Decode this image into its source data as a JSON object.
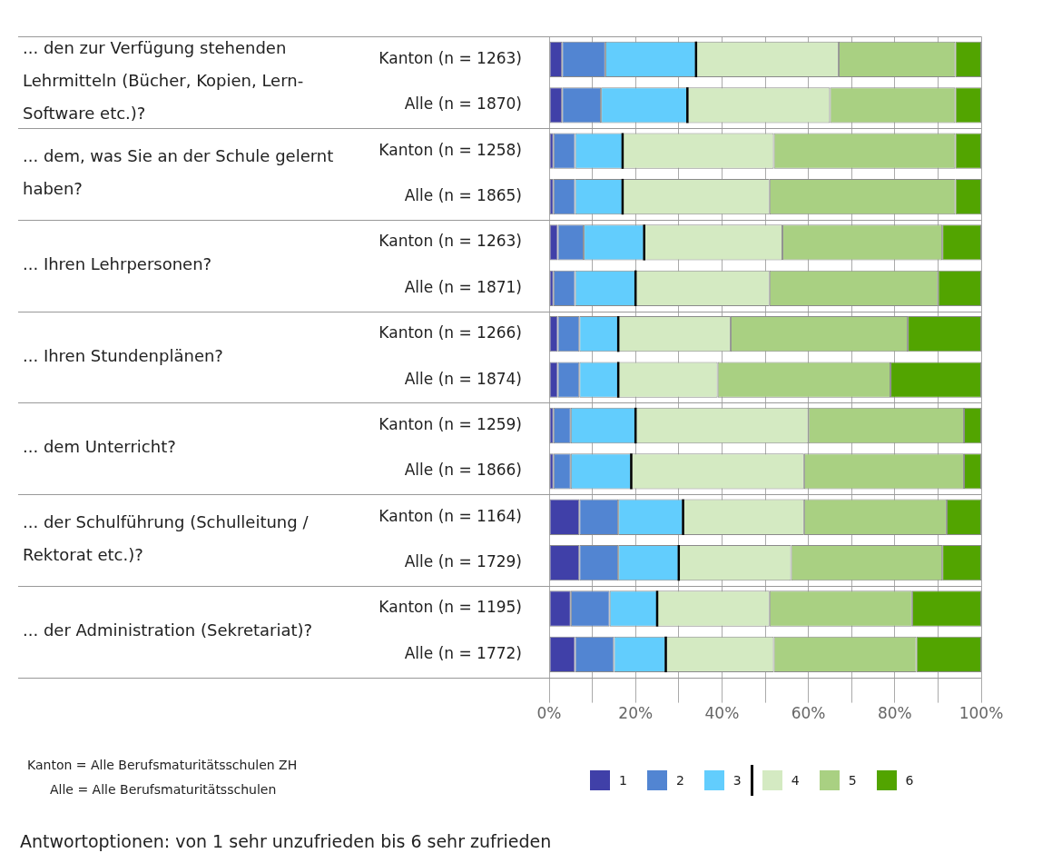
{
  "chart_data": {
    "type": "bar",
    "orientation": "horizontal",
    "stacked": true,
    "categories": [
      "Kanton (n = 1263)",
      "Alle (n = 1870)",
      "Kanton (n = 1258)",
      "Alle (n = 1865)",
      "Kanton (n = 1263)",
      "Alle (n = 1871)",
      "Kanton (n = 1266)",
      "Alle (n = 1874)",
      "Kanton (n = 1259)",
      "Alle (n = 1866)",
      "Kanton (n = 1164)",
      "Alle (n = 1729)",
      "Kanton (n = 1195)",
      "Alle (n = 1772)"
    ],
    "series": [
      {
        "name": "1",
        "color": "#4040a8",
        "values": [
          3,
          3,
          1,
          1,
          2,
          1,
          2,
          2,
          1,
          1,
          7,
          7,
          5,
          6
        ]
      },
      {
        "name": "2",
        "color": "#5285d2",
        "values": [
          10,
          9,
          5,
          5,
          6,
          5,
          5,
          5,
          4,
          4,
          9,
          9,
          9,
          9
        ]
      },
      {
        "name": "3",
        "color": "#62cdfd",
        "values": [
          21,
          20,
          11,
          11,
          14,
          14,
          9,
          9,
          15,
          14,
          15,
          14,
          11,
          12
        ]
      },
      {
        "name": "4",
        "color": "#d4eac2",
        "values": [
          33,
          33,
          35,
          34,
          32,
          31,
          26,
          23,
          40,
          40,
          28,
          26,
          26,
          25
        ]
      },
      {
        "name": "5",
        "color": "#a9d082",
        "values": [
          27,
          29,
          42,
          43,
          37,
          39,
          41,
          40,
          36,
          37,
          33,
          35,
          33,
          33
        ]
      },
      {
        "name": "6",
        "color": "#52a400",
        "values": [
          6,
          6,
          6,
          6,
          9,
          10,
          17,
          21,
          4,
          4,
          8,
          9,
          16,
          15
        ]
      }
    ],
    "xlim": [
      0,
      100
    ],
    "xticks": [
      {
        "value": 0,
        "label": "0%"
      },
      {
        "value": 10,
        "label": null
      },
      {
        "value": 20,
        "label": "20%"
      },
      {
        "value": 30,
        "label": null
      },
      {
        "value": 40,
        "label": "40%"
      },
      {
        "value": 50,
        "label": null
      },
      {
        "value": 60,
        "label": "60%"
      },
      {
        "value": 70,
        "label": null
      },
      {
        "value": 80,
        "label": "80%"
      },
      {
        "value": 90,
        "label": null
      },
      {
        "value": 100,
        "label": "100%"
      }
    ],
    "grid": "x",
    "legend": "bottom",
    "annotations": [
      "... den zur Verfügung stehenden Lehrmitteln (Bücher, Kopien, Lern-Software etc.)?",
      "... dem, was Sie an der Schule gelernt haben?",
      "... Ihren Lehrpersonen?",
      "... Ihren Stundenplänen?",
      "... dem Unterricht?",
      "... der Schulführung (Schulleitung / Rektorat etc.)?",
      "... der Administration (Sekretariat)?",
      "Kanton = Alle Berufsmaturitätsschulen ZH",
      "Alle = Alle Berufsmaturitätsschulen",
      "Antwortoptionen: von 1 sehr unzufrieden bis 6 sehr zufrieden"
    ]
  }
}
